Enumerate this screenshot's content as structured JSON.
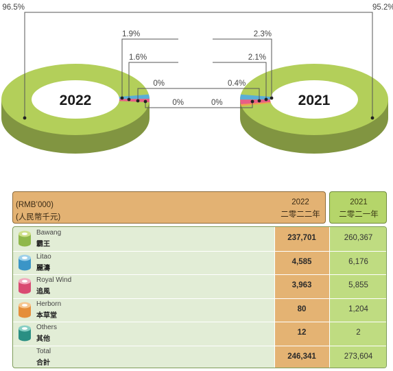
{
  "chart_data": [
    {
      "type": "pie",
      "title": "2022",
      "slices": [
        {
          "name": "Bawang",
          "label": "96.5%",
          "value": 96.5,
          "color": "#b3cf5a"
        },
        {
          "name": "Litao",
          "label": "1.9%",
          "value": 1.9,
          "color": "#5aaed6"
        },
        {
          "name": "Royal Wind",
          "label": "1.6%",
          "value": 1.6,
          "color": "#e85f86"
        },
        {
          "name": "Herborn",
          "label": "0%",
          "value": 0.0,
          "color": "#f0a24e"
        },
        {
          "name": "Others",
          "label": "0%",
          "value": 0.0,
          "color": "#3aa69a"
        }
      ]
    },
    {
      "type": "pie",
      "title": "2021",
      "slices": [
        {
          "name": "Bawang",
          "label": "95.2%",
          "value": 95.2,
          "color": "#b3cf5a"
        },
        {
          "name": "Litao",
          "label": "2.3%",
          "value": 2.3,
          "color": "#5aaed6"
        },
        {
          "name": "Royal Wind",
          "label": "2.1%",
          "value": 2.1,
          "color": "#e85f86"
        },
        {
          "name": "Herborn",
          "label": "0.4%",
          "value": 0.4,
          "color": "#f0a24e"
        },
        {
          "name": "Others",
          "label": "0%",
          "value": 0.0,
          "color": "#3aa69a"
        }
      ]
    },
    {
      "type": "table",
      "header": {
        "label_en": "(RMB’000)",
        "label_zh": "(人民幣千元)",
        "col_2022": "2022",
        "col_2022_zh": "二零二二年",
        "col_2021": "2021",
        "col_2021_zh": "二零二一年"
      },
      "rows": [
        {
          "en": "Bawang",
          "zh": "霸王",
          "v2022": "237,701",
          "v2021": "260,367",
          "icon": "green-cylinder-icon",
          "top": "#cfe08a",
          "side": "#8fb84a"
        },
        {
          "en": "Litao",
          "zh": "麗濤",
          "v2022": "4,585",
          "v2021": "6,176",
          "icon": "blue-cylinder-icon",
          "top": "#9dd0ea",
          "side": "#3b95c7"
        },
        {
          "en": "Royal Wind",
          "zh": "追風",
          "v2022": "3,963",
          "v2021": "5,855",
          "icon": "pink-cylinder-icon",
          "top": "#f2a9be",
          "side": "#d94a72"
        },
        {
          "en": "Herborn",
          "zh": "本草堂",
          "v2022": "80",
          "v2021": "1,204",
          "icon": "orange-cylinder-icon",
          "top": "#f6c690",
          "side": "#e58e3a"
        },
        {
          "en": "Others",
          "zh": "其他",
          "v2022": "12",
          "v2021": "2",
          "icon": "teal-cylinder-icon",
          "top": "#88cfc4",
          "side": "#2a8f83"
        },
        {
          "en": "Total",
          "zh": "合計",
          "v2022": "246,341",
          "v2021": "273,604",
          "icon": "",
          "top": "",
          "side": ""
        }
      ]
    }
  ]
}
